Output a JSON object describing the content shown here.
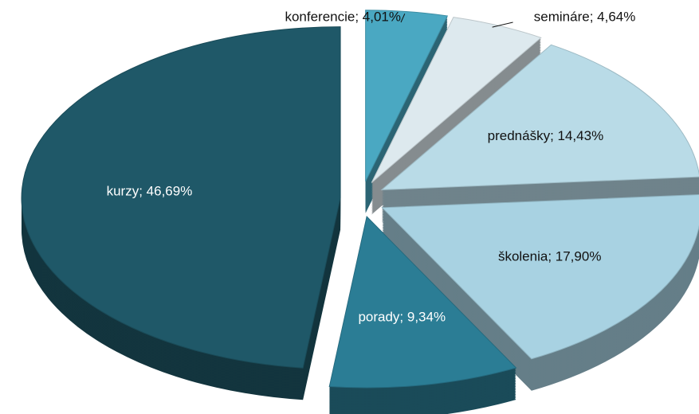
{
  "chart_data": {
    "type": "pie",
    "labels": [
      "konferencie; 4,01%",
      "semináre; 4,64%",
      "prednášky; 14,43%",
      "školenia; 17,90%",
      "porady; 9,34%",
      "kurzy; 46,69%"
    ],
    "values": [
      4.01,
      4.64,
      14.43,
      17.9,
      9.34,
      46.69
    ],
    "colors": [
      "#4aa8c2",
      "#dde9ee",
      "#b9dbe7",
      "#a8d2e2",
      "#2b7d95",
      "#1f5868"
    ]
  }
}
